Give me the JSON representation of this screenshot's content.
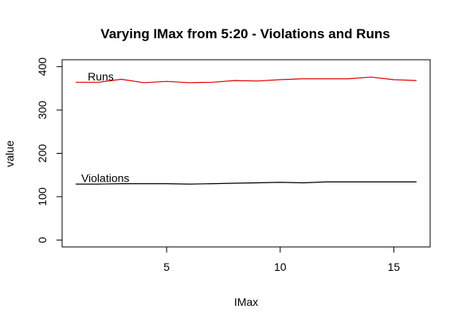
{
  "chart_data": {
    "type": "line",
    "title": "Varying IMax from 5:20 - Violations and Runs",
    "xlabel": "IMax",
    "ylabel": "value",
    "xlim": [
      0.4,
      16.6
    ],
    "ylim": [
      -16,
      416
    ],
    "x_ticks": [
      5,
      10,
      15
    ],
    "y_ticks": [
      0,
      100,
      200,
      300,
      400
    ],
    "x_tick_labels": [
      "5",
      "10",
      "15"
    ],
    "y_tick_labels": [
      "0",
      "100",
      "200",
      "300",
      "400"
    ],
    "grid": false,
    "legend": "none",
    "x": [
      1,
      2,
      3,
      4,
      5,
      6,
      7,
      8,
      9,
      10,
      11,
      12,
      13,
      14,
      15,
      16
    ],
    "series": [
      {
        "name": "Runs",
        "color": "#e00000",
        "values": [
          364,
          364,
          371,
          363,
          366,
          363,
          364,
          368,
          367,
          370,
          372,
          372,
          372,
          376,
          370,
          368
        ]
      },
      {
        "name": "Violations",
        "color": "#000000",
        "values": [
          129,
          129,
          130,
          130,
          130,
          129,
          130,
          131,
          132,
          133,
          132,
          134,
          134,
          134,
          134,
          134
        ]
      }
    ],
    "annotations": [
      {
        "text": "Runs",
        "x": 2.1,
        "y": 377
      },
      {
        "text": "Violations",
        "x": 2.3,
        "y": 143
      }
    ]
  }
}
